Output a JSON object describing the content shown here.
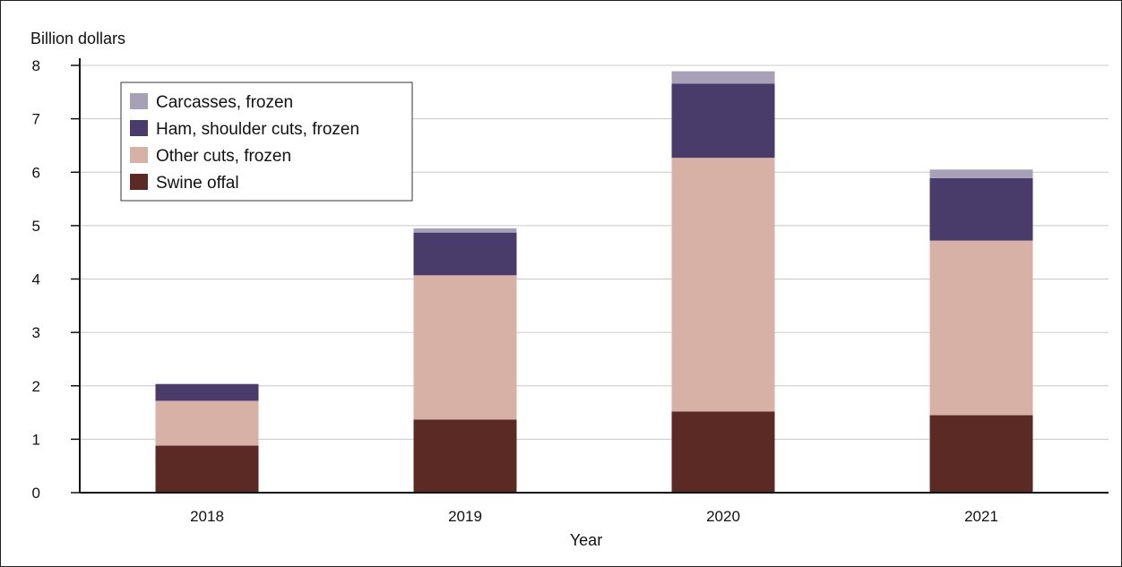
{
  "chart_data": {
    "type": "bar",
    "stacked": true,
    "title": "",
    "xlabel": "Year",
    "ylabel": "Billion dollars",
    "categories": [
      "2018",
      "2019",
      "2020",
      "2021"
    ],
    "ylim": [
      0,
      8
    ],
    "yticks": [
      0,
      1,
      2,
      3,
      4,
      5,
      6,
      7,
      8
    ],
    "grid": true,
    "legend_position": "top-left",
    "series": [
      {
        "name": "Swine offal",
        "color": "#5c2a24",
        "values": [
          0.88,
          1.37,
          1.52,
          1.45
        ]
      },
      {
        "name": "Other cuts, frozen",
        "color": "#d7b1a5",
        "values": [
          0.84,
          2.7,
          4.75,
          3.27
        ]
      },
      {
        "name": "Ham, shoulder cuts, frozen",
        "color": "#493c6b",
        "values": [
          0.31,
          0.8,
          1.39,
          1.17
        ]
      },
      {
        "name": "Carcasses, frozen",
        "color": "#a7a1b7",
        "values": [
          0.01,
          0.08,
          0.23,
          0.16
        ]
      }
    ],
    "legend_order": [
      "Carcasses, frozen",
      "Ham, shoulder cuts, frozen",
      "Other cuts, frozen",
      "Swine offal"
    ]
  }
}
